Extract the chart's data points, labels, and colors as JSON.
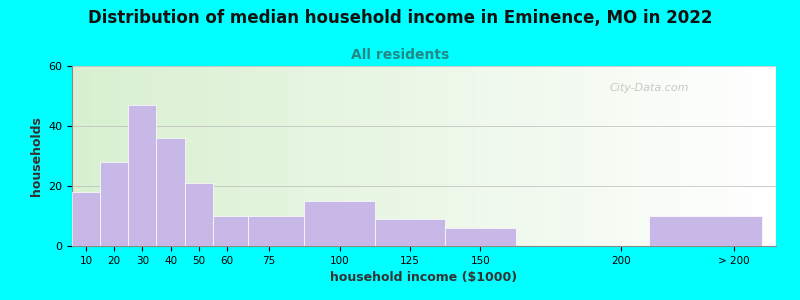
{
  "title": "Distribution of median household income in Eminence, MO in 2022",
  "subtitle": "All residents",
  "xlabel": "household income ($1000)",
  "ylabel": "households",
  "background_color": "#00FFFF",
  "bar_color": "#c8b8e8",
  "ylim": [
    0,
    60
  ],
  "yticks": [
    0,
    20,
    40,
    60
  ],
  "tick_labels": [
    "10",
    "20",
    "30",
    "40",
    "50",
    "60",
    "75",
    "100",
    "125",
    "150",
    "200",
    "> 200"
  ],
  "tick_positions": [
    10,
    20,
    30,
    40,
    50,
    60,
    75,
    100,
    125,
    150,
    200,
    240
  ],
  "bar_left_edges": [
    5,
    15,
    25,
    35,
    45,
    55,
    67.5,
    87.5,
    112.5,
    137.5,
    205,
    215
  ],
  "bar_widths": [
    10,
    10,
    10,
    10,
    10,
    12.5,
    22.5,
    25,
    25,
    25,
    0,
    50
  ],
  "values": [
    18,
    28,
    47,
    36,
    21,
    10,
    10,
    15,
    9,
    6,
    0,
    10
  ],
  "title_fontsize": 12,
  "subtitle_fontsize": 10,
  "axis_label_fontsize": 9,
  "watermark": "City-Data.com"
}
